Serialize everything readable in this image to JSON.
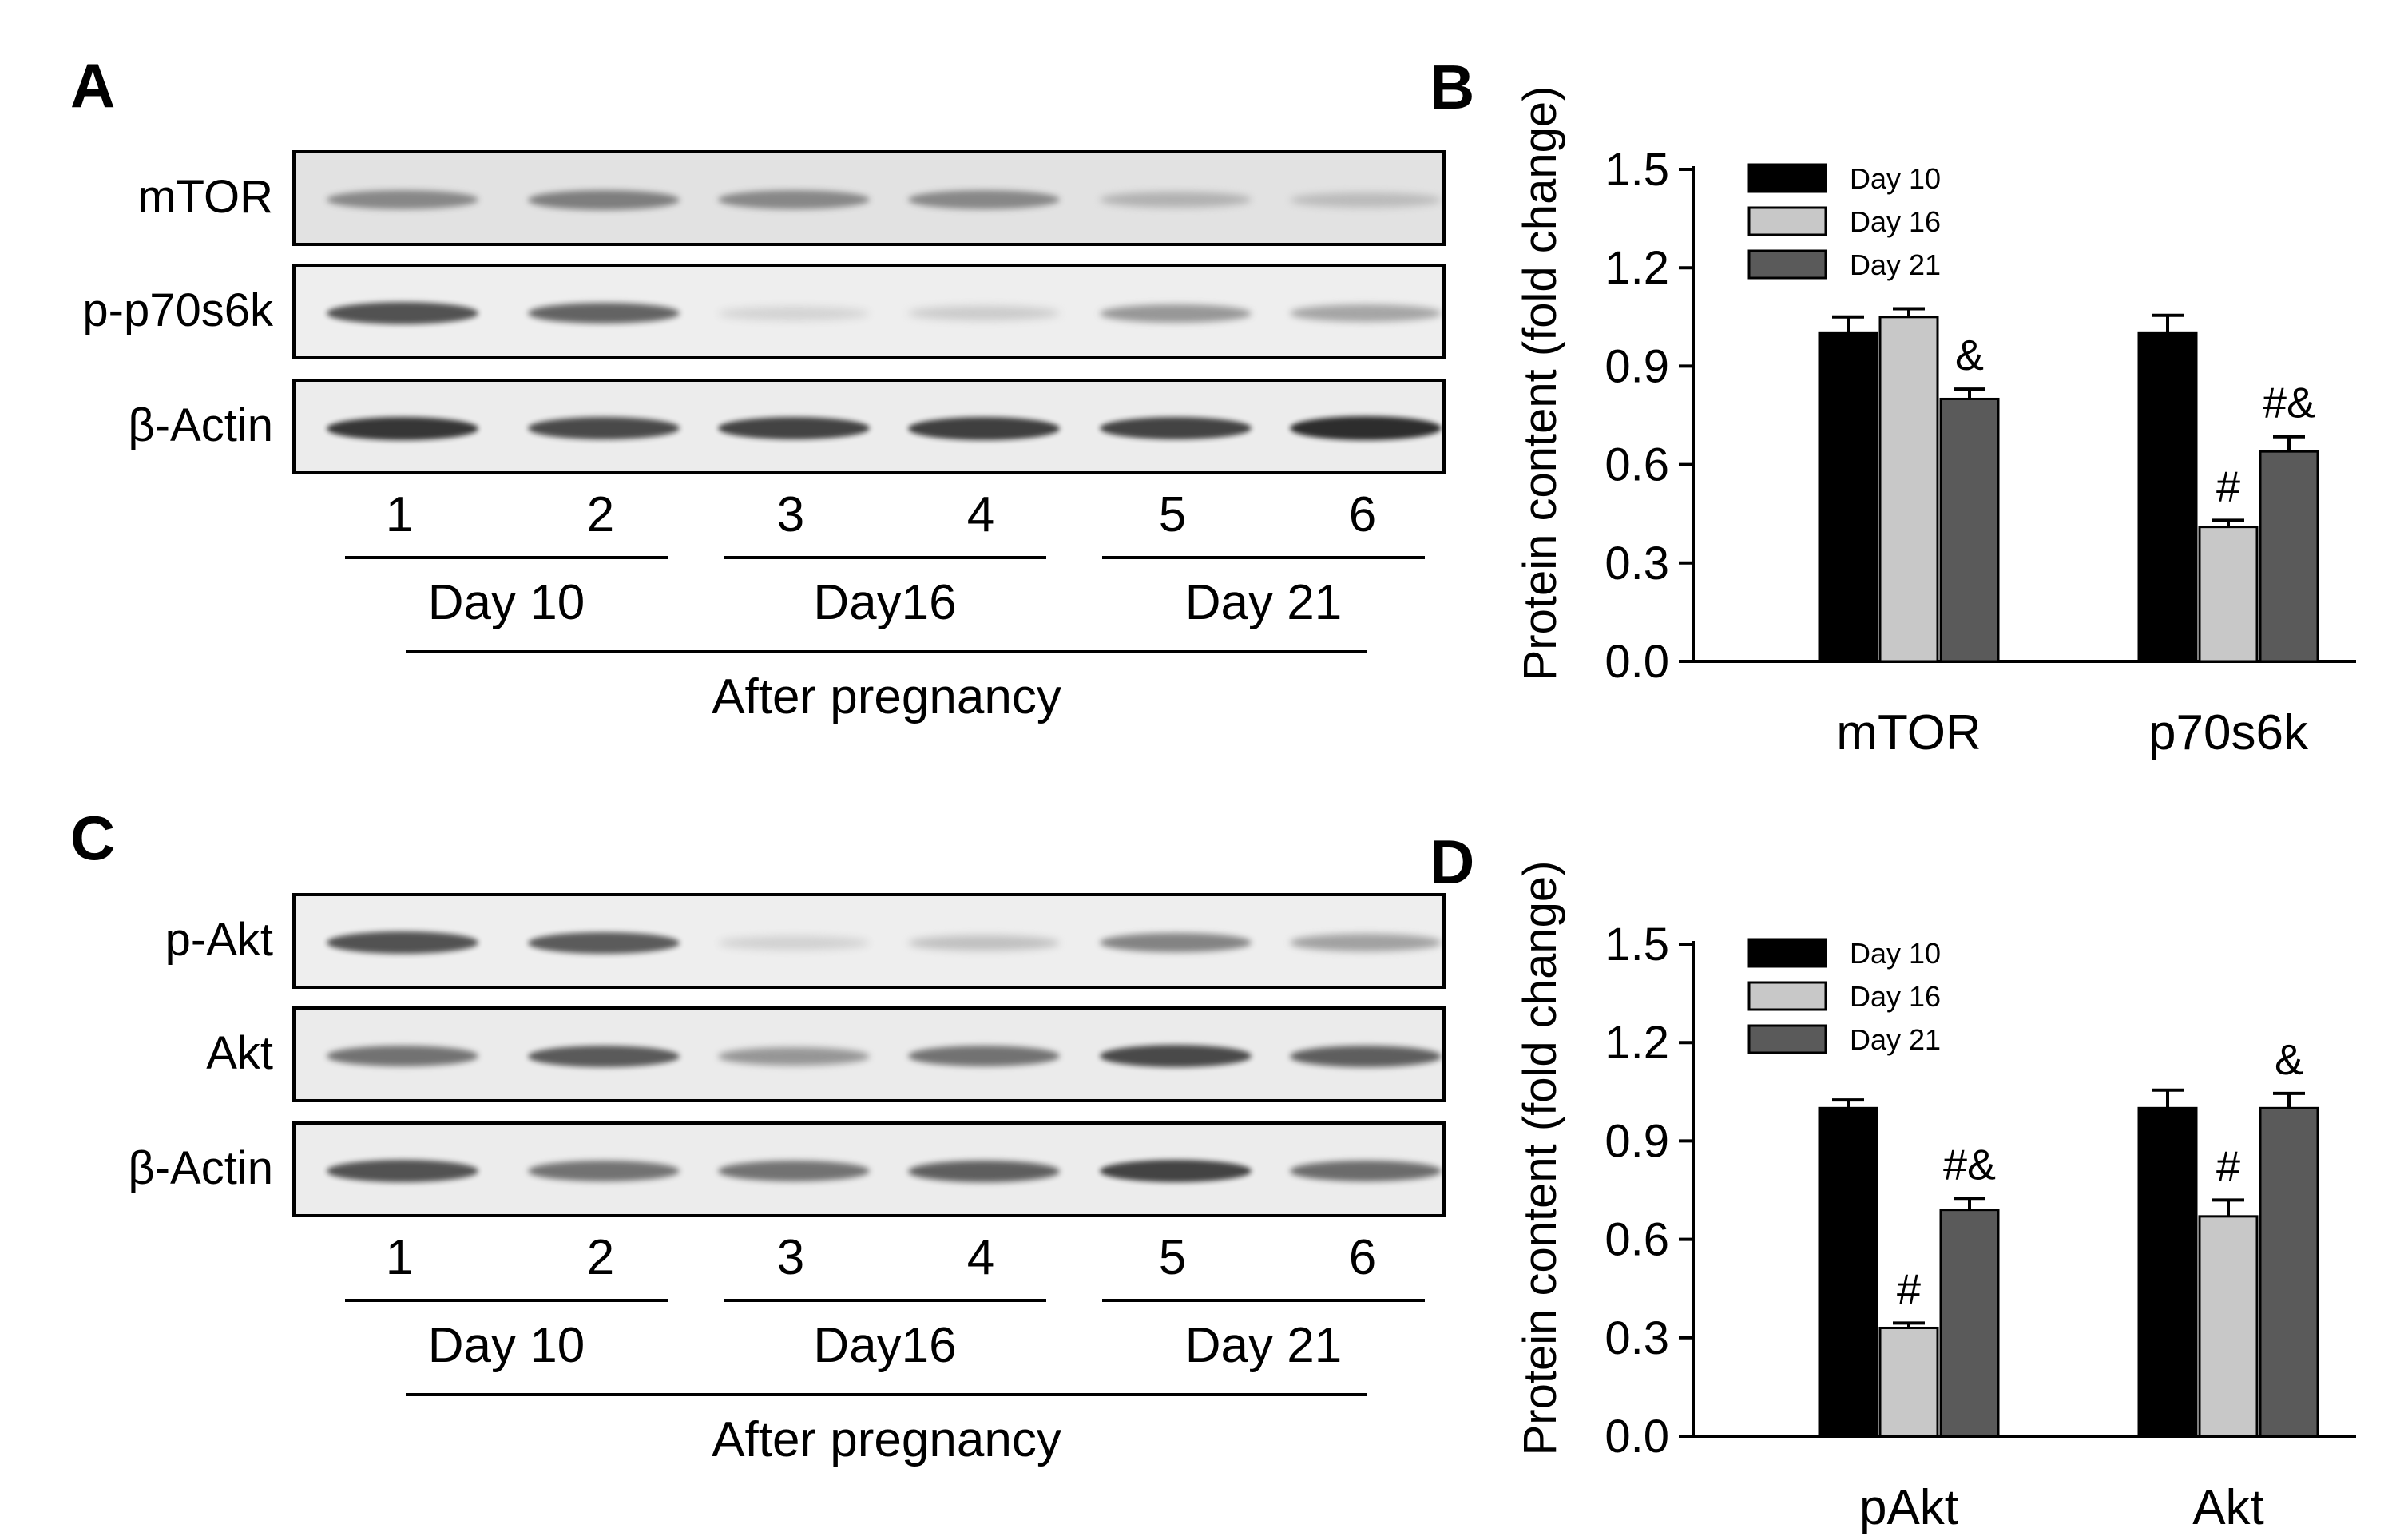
{
  "panels": {
    "A": {
      "letter": "A",
      "blots": [
        {
          "label": "mTOR",
          "intensity": [
            0.62,
            0.66,
            0.62,
            0.62,
            0.38,
            0.32
          ],
          "background": "#e2e2e2"
        },
        {
          "label": "p-p70s6k",
          "intensity": [
            0.85,
            0.78,
            0.18,
            0.24,
            0.55,
            0.48
          ],
          "background": "#eeeeee"
        },
        {
          "label": "β-Actin",
          "intensity": [
            0.95,
            0.88,
            0.9,
            0.92,
            0.9,
            0.98
          ],
          "background": "#ececec"
        }
      ],
      "lanes": [
        "1",
        "2",
        "3",
        "4",
        "5",
        "6"
      ],
      "groups": [
        "Day 10",
        "Day16",
        "Day 21"
      ],
      "caption": "After pregnancy"
    },
    "C": {
      "letter": "C",
      "blots": [
        {
          "label": "p-Akt",
          "intensity": [
            0.85,
            0.82,
            0.2,
            0.32,
            0.65,
            0.5
          ],
          "background": "#eeeeee"
        },
        {
          "label": "Akt",
          "intensity": [
            0.72,
            0.82,
            0.55,
            0.72,
            0.88,
            0.8
          ],
          "background": "#ebebeb"
        },
        {
          "label": "β-Actin",
          "intensity": [
            0.85,
            0.72,
            0.72,
            0.8,
            0.9,
            0.75
          ],
          "background": "#ececec"
        }
      ],
      "lanes": [
        "1",
        "2",
        "3",
        "4",
        "5",
        "6"
      ],
      "groups": [
        "Day 10",
        "Day16",
        "Day 21"
      ],
      "caption": "After pregnancy"
    },
    "B": {
      "letter": "B"
    },
    "D": {
      "letter": "D"
    }
  },
  "chart_data": [
    {
      "type": "bar",
      "panel": "B",
      "title": "",
      "xlabel": "",
      "ylabel": "Protein content (fold change)",
      "ylim": [
        0,
        1.5
      ],
      "yticks": [
        "0.0",
        "0.3",
        "0.6",
        "0.9",
        "1.2",
        "1.5"
      ],
      "categories": [
        "mTOR",
        "p70s6k"
      ],
      "legend_position": "top-left",
      "series": [
        {
          "name": "Day 10",
          "color": "#000000",
          "values": [
            1.0,
            1.0
          ],
          "errors": [
            0.05,
            0.055
          ],
          "marks": [
            "",
            ""
          ]
        },
        {
          "name": "Day 16",
          "color": "#c8c8c8",
          "values": [
            1.05,
            0.41
          ],
          "errors": [
            0.025,
            0.02
          ],
          "marks": [
            "",
            "#"
          ]
        },
        {
          "name": "Day 21",
          "color": "#5a5a5a",
          "values": [
            0.8,
            0.64
          ],
          "errors": [
            0.03,
            0.045
          ],
          "marks": [
            "&",
            "#&"
          ]
        }
      ]
    },
    {
      "type": "bar",
      "panel": "D",
      "title": "",
      "xlabel": "",
      "ylabel": "Protein content (fold change)",
      "ylim": [
        0,
        1.5
      ],
      "yticks": [
        "0.0",
        "0.3",
        "0.6",
        "0.9",
        "1.2",
        "1.5"
      ],
      "categories": [
        "pAkt",
        "Akt"
      ],
      "legend_position": "top-left",
      "series": [
        {
          "name": "Day 10",
          "color": "#000000",
          "values": [
            1.0,
            1.0
          ],
          "errors": [
            0.025,
            0.055
          ],
          "marks": [
            "",
            ""
          ]
        },
        {
          "name": "Day 16",
          "color": "#c8c8c8",
          "values": [
            0.33,
            0.67
          ],
          "errors": [
            0.015,
            0.05
          ],
          "marks": [
            "#",
            "#"
          ]
        },
        {
          "name": "Day 21",
          "color": "#5a5a5a",
          "values": [
            0.69,
            1.0
          ],
          "errors": [
            0.035,
            0.045
          ],
          "marks": [
            "#&",
            "&"
          ]
        }
      ]
    }
  ]
}
